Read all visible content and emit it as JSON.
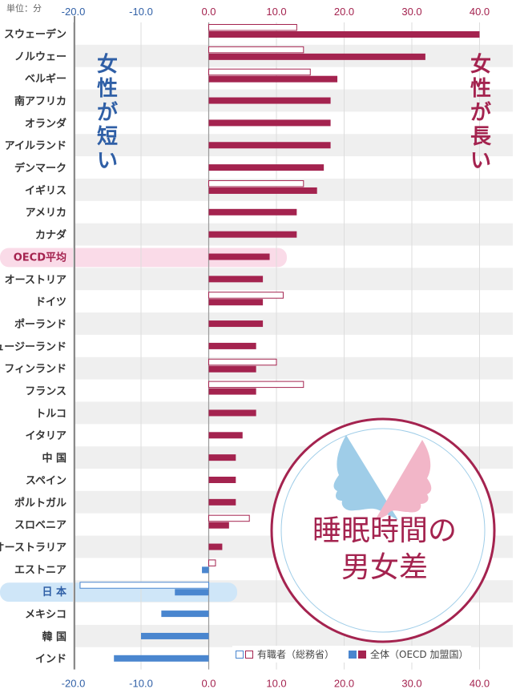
{
  "unit_label": "単位：分",
  "left_label": "女性が短い",
  "right_label": "女性が長い",
  "badge_title_line1": "睡眠時間の",
  "badge_title_line2": "男女差",
  "legend": {
    "employed": "有職者（総務省）",
    "all": "全体（OECD 加盟国）"
  },
  "colors": {
    "female_longer": "#a4234f",
    "female_shorter": "#4a86cf",
    "oecd_highlight": "#fadbe8",
    "japan_highlight": "#cfe6f8",
    "stripe": "#efefef"
  },
  "chart_data": {
    "type": "bar",
    "orientation": "horizontal",
    "categories": [
      "スウェーデン",
      "ノルウェー",
      "ベルギー",
      "南アフリカ",
      "オランダ",
      "アイルランド",
      "デンマーク",
      "イギリス",
      "アメリカ",
      "カナダ",
      "OECD平均",
      "オーストリア",
      "ドイツ",
      "ポーランド",
      "ニュージーランド",
      "フィンランド",
      "フランス",
      "トルコ",
      "イタリア",
      "中 国",
      "スペイン",
      "ポルトガル",
      "スロベニア",
      "オーストラリア",
      "エストニア",
      "日 本",
      "メキシコ",
      "韓 国",
      "インド"
    ],
    "series": [
      {
        "name": "有職者（総務省）",
        "values": [
          13,
          14,
          15,
          null,
          null,
          null,
          null,
          14,
          null,
          null,
          null,
          null,
          11,
          null,
          null,
          10,
          14,
          null,
          null,
          null,
          null,
          null,
          6,
          null,
          1,
          -19,
          null,
          null,
          null
        ]
      },
      {
        "name": "全体（OECD 加盟国）",
        "values": [
          40,
          32,
          19,
          18,
          18,
          18,
          17,
          16,
          13,
          13,
          9,
          8,
          8,
          8,
          7,
          7,
          7,
          7,
          5,
          4,
          4,
          4,
          3,
          2,
          -1,
          -5,
          -7,
          -10,
          -14
        ]
      }
    ],
    "xlim": [
      -20,
      45
    ],
    "xticks": [
      "-20.0",
      "-10.0",
      "0.0",
      "10.0",
      "20.0",
      "30.0",
      "40.0"
    ],
    "tick_values": [
      -20,
      -10,
      0,
      10,
      20,
      30,
      40
    ],
    "highlight": [
      "OECD平均",
      "日 本"
    ],
    "grid": true
  }
}
